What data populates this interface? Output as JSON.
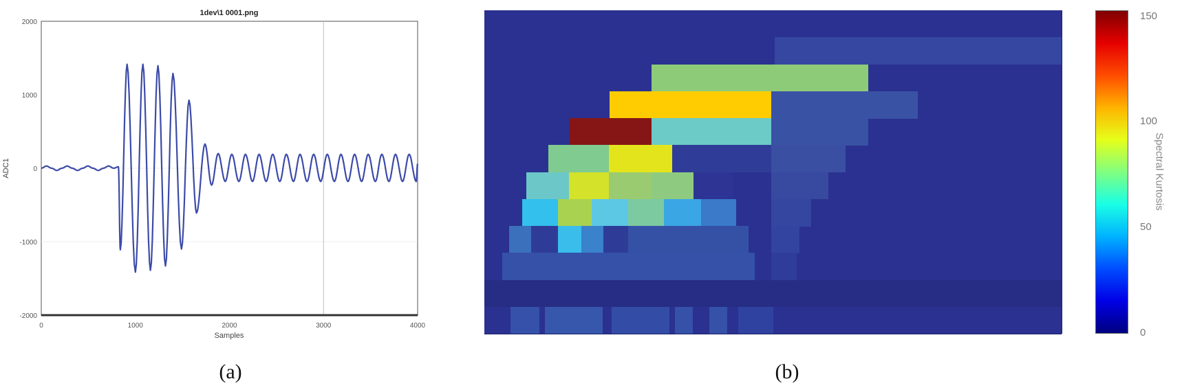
{
  "chart_data": [
    {
      "type": "line",
      "panel": "(a)",
      "title": "1dev\\1 0001.png",
      "xlabel": "Samples",
      "ylabel": "ADC1",
      "xlim": [
        0,
        4000
      ],
      "ylim": [
        -2000,
        2000
      ],
      "xticks": [
        0,
        1000,
        2000,
        3000,
        4000
      ],
      "yticks": [
        2000,
        1000,
        0,
        -1000,
        -2000
      ],
      "grid": true,
      "line_color": "#3c4aa8",
      "series": [
        {
          "name": "ADC1",
          "x": [
            0,
            55,
            110,
            165,
            220,
            275,
            330,
            385,
            440,
            495,
            550,
            605,
            660,
            715,
            770,
            820,
            840,
            912,
            1000,
            1080,
            1160,
            1240,
            1320,
            1400,
            1490,
            1570,
            1650,
            1740,
            1810,
            1880,
            1955,
            2025,
            2100,
            2170,
            2245,
            2315,
            2390,
            2460,
            2535,
            2605,
            2680,
            2750,
            2825,
            2895,
            2970,
            3040,
            3115,
            3185,
            3260,
            3330,
            3405,
            3475,
            3550,
            3620,
            3695,
            3765,
            3840,
            3910,
            3985,
            4000
          ],
          "y": [
            0,
            30,
            0,
            -30,
            0,
            30,
            0,
            -30,
            0,
            30,
            0,
            -30,
            0,
            30,
            0,
            20,
            -1110,
            1415,
            -1415,
            1415,
            -1390,
            1395,
            -1330,
            1290,
            -1100,
            925,
            -610,
            330,
            -230,
            200,
            -180,
            190,
            -180,
            190,
            -180,
            190,
            -180,
            190,
            -180,
            190,
            -180,
            190,
            -180,
            190,
            -180,
            190,
            -180,
            190,
            -180,
            190,
            -180,
            190,
            -180,
            190,
            -180,
            190,
            -180,
            190,
            -180,
            60
          ]
        }
      ]
    },
    {
      "type": "heatmap",
      "panel": "(b)",
      "title": "",
      "xlabel": "",
      "ylabel": "",
      "colorbar": {
        "label": "Spectral Kurtosis",
        "range": [
          0,
          150
        ],
        "ticks": [
          0,
          50,
          100,
          150
        ],
        "colormap": "jet"
      },
      "rows": 12,
      "background_value": 5,
      "cells_note": "x0/x1 are fractions of heatmap width; row index 0 = top; value in Spectral Kurtosis units",
      "cells": [
        {
          "row": 1,
          "x0": 0.503,
          "x1": 1.0,
          "value": 22
        },
        {
          "row": 2,
          "x0": 0.29,
          "x1": 0.665,
          "value": 78
        },
        {
          "row": 3,
          "x0": 0.217,
          "x1": 0.497,
          "value": 107
        },
        {
          "row": 3,
          "x0": 0.497,
          "x1": 0.75,
          "value": 24
        },
        {
          "row": 4,
          "x0": 0.148,
          "x1": 0.29,
          "value": 150
        },
        {
          "row": 4,
          "x0": 0.29,
          "x1": 0.497,
          "value": 62
        },
        {
          "row": 4,
          "x0": 0.497,
          "x1": 0.665,
          "value": 24
        },
        {
          "row": 5,
          "x0": 0.111,
          "x1": 0.216,
          "value": 75
        },
        {
          "row": 5,
          "x0": 0.216,
          "x1": 0.325,
          "value": 95
        },
        {
          "row": 5,
          "x0": 0.325,
          "x1": 0.497,
          "value": 20
        },
        {
          "row": 5,
          "x0": 0.497,
          "x1": 0.625,
          "value": 22
        },
        {
          "row": 6,
          "x0": 0.073,
          "x1": 0.147,
          "value": 62
        },
        {
          "row": 6,
          "x0": 0.147,
          "x1": 0.216,
          "value": 92
        },
        {
          "row": 6,
          "x0": 0.216,
          "x1": 0.29,
          "value": 82
        },
        {
          "row": 6,
          "x0": 0.29,
          "x1": 0.362,
          "value": 78
        },
        {
          "row": 6,
          "x0": 0.362,
          "x1": 0.43,
          "value": 10
        },
        {
          "row": 6,
          "x0": 0.497,
          "x1": 0.595,
          "value": 20
        },
        {
          "row": 7,
          "x0": 0.065,
          "x1": 0.128,
          "value": 50
        },
        {
          "row": 7,
          "x0": 0.128,
          "x1": 0.186,
          "value": 88
        },
        {
          "row": 7,
          "x0": 0.186,
          "x1": 0.249,
          "value": 58
        },
        {
          "row": 7,
          "x0": 0.249,
          "x1": 0.311,
          "value": 70
        },
        {
          "row": 7,
          "x0": 0.311,
          "x1": 0.375,
          "value": 45
        },
        {
          "row": 7,
          "x0": 0.375,
          "x1": 0.436,
          "value": 32
        },
        {
          "row": 7,
          "x0": 0.497,
          "x1": 0.565,
          "value": 18
        },
        {
          "row": 8,
          "x0": 0.043,
          "x1": 0.081,
          "value": 30
        },
        {
          "row": 8,
          "x0": 0.081,
          "x1": 0.128,
          "value": 20
        },
        {
          "row": 8,
          "x0": 0.128,
          "x1": 0.168,
          "value": 52
        },
        {
          "row": 8,
          "x0": 0.168,
          "x1": 0.206,
          "value": 36
        },
        {
          "row": 8,
          "x0": 0.206,
          "x1": 0.249,
          "value": 18
        },
        {
          "row": 8,
          "x0": 0.249,
          "x1": 0.457,
          "value": 24
        },
        {
          "row": 8,
          "x0": 0.497,
          "x1": 0.545,
          "value": 18
        },
        {
          "row": 9,
          "x0": 0.031,
          "x1": 0.468,
          "value": 24
        },
        {
          "row": 9,
          "x0": 0.497,
          "x1": 0.54,
          "value": 15
        },
        {
          "row": 10,
          "x0": 0.0,
          "x1": 1.0,
          "value": 6
        },
        {
          "row": 11,
          "x0": 0.045,
          "x1": 0.095,
          "value": 20
        },
        {
          "row": 11,
          "x0": 0.105,
          "x1": 0.205,
          "value": 22
        },
        {
          "row": 11,
          "x0": 0.22,
          "x1": 0.32,
          "value": 18
        },
        {
          "row": 11,
          "x0": 0.33,
          "x1": 0.36,
          "value": 20
        },
        {
          "row": 11,
          "x0": 0.39,
          "x1": 0.42,
          "value": 20
        },
        {
          "row": 11,
          "x0": 0.44,
          "x1": 0.5,
          "value": 14
        }
      ]
    }
  ],
  "panel_a": {
    "title": "1dev\\1 0001.png",
    "xlabel": "Samples",
    "ylabel": "ADC1",
    "xtick_labels": [
      "0",
      "1000",
      "2000",
      "3000",
      "4000"
    ],
    "ytick_labels": [
      "2000",
      "1000",
      "0",
      "-1000",
      "-2000"
    ],
    "caption": "(a)"
  },
  "panel_b": {
    "colorbar_title": "Spectral Kurtosis",
    "colorbar_tick_labels": [
      "150",
      "100",
      "50",
      "0"
    ],
    "caption": "(b)",
    "cell_colors": {
      "1": [
        "#3547a0"
      ],
      "2": [
        "#8ecb78"
      ],
      "3": [
        "#fecc00",
        "#3a52a4"
      ],
      "4": [
        "#861616",
        "#6ccbc7",
        "#3a52a4"
      ],
      "5": [
        "#7fcb90",
        "#e4e41c",
        "#303d98",
        "#3a4ea2"
      ],
      "6": [
        "#6cc8c8",
        "#d4e22a",
        "#9acb70",
        "#8ecb80",
        "#2d3494",
        "#384aa0"
      ],
      "7": [
        "#33c0ec",
        "#a8d250",
        "#5cc8e4",
        "#7ccaa0",
        "#3aa6e4",
        "#3a7ac8",
        "#3446a0"
      ],
      "8": [
        "#3b70bc",
        "#2e3c98",
        "#3abdea",
        "#3a82cc",
        "#2e3c98",
        "#3551a6",
        "#3244a0"
      ],
      "9": [
        "#3551a8",
        "#2f3c9a"
      ],
      "10": [
        "#272d84"
      ],
      "11": [
        "#3551aa",
        "#3757ac",
        "#334da6",
        "#3551a8",
        "#3551a8",
        "#2f42a0"
      ]
    }
  }
}
